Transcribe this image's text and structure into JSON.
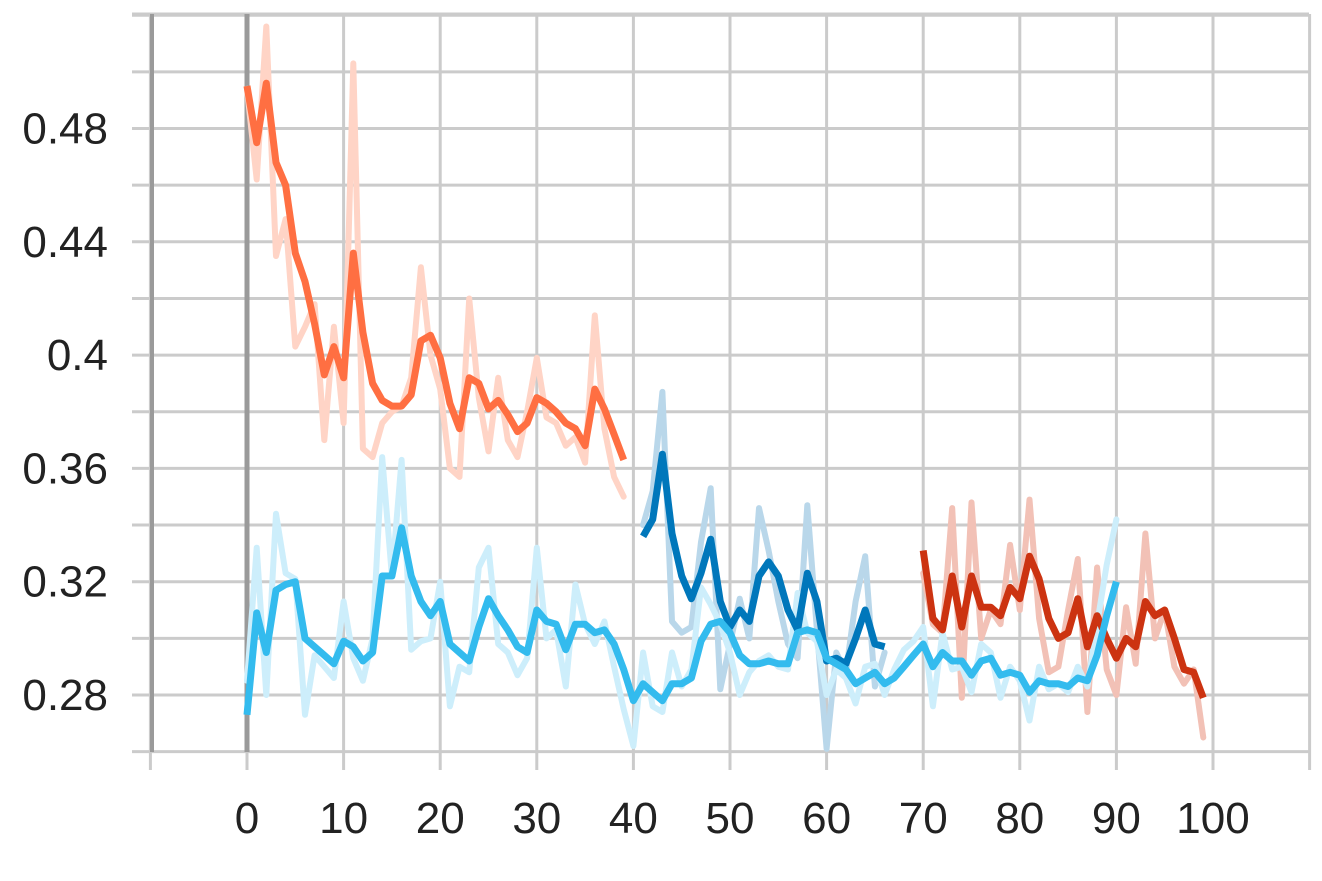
{
  "chart_data": {
    "type": "line",
    "title": "",
    "xlabel": "",
    "ylabel": "",
    "xlim": [
      -10,
      110
    ],
    "ylim": [
      0.26,
      0.53
    ],
    "x_ticks": [
      0,
      10,
      20,
      30,
      40,
      50,
      60,
      70,
      80,
      90,
      100
    ],
    "x_tick_labels": [
      "0",
      "10",
      "20",
      "30",
      "40",
      "50",
      "60",
      "70",
      "80",
      "90",
      "100"
    ],
    "y_ticks": [
      0.28,
      0.32,
      0.36,
      0.4,
      0.44,
      0.48
    ],
    "y_tick_labels": [
      "0.28",
      "0.32",
      "0.36",
      "0.4",
      "0.44",
      "0.48"
    ],
    "grid": true,
    "legend": "none",
    "series": [
      {
        "color": "#ff6f42",
        "raw_color": "#ffd4c6",
        "x_start": 0,
        "smoothed": [
          0.495,
          0.475,
          0.496,
          0.468,
          0.46,
          0.436,
          0.426,
          0.411,
          0.393,
          0.403,
          0.392,
          0.436,
          0.408,
          0.39,
          0.384,
          0.382,
          0.382,
          0.386,
          0.405,
          0.407,
          0.399,
          0.383,
          0.374,
          0.392,
          0.39,
          0.381,
          0.384,
          0.379,
          0.373,
          0.376,
          0.385,
          0.383,
          0.38,
          0.376,
          0.374,
          0.368,
          0.388,
          0.381,
          0.372,
          0.363
        ],
        "raw": [
          0.494,
          0.462,
          0.516,
          0.435,
          0.448,
          0.403,
          0.41,
          0.418,
          0.37,
          0.41,
          0.376,
          0.503,
          0.367,
          0.364,
          0.376,
          0.38,
          0.382,
          0.392,
          0.431,
          0.4,
          0.388,
          0.36,
          0.357,
          0.42,
          0.385,
          0.366,
          0.392,
          0.37,
          0.364,
          0.38,
          0.399,
          0.378,
          0.376,
          0.368,
          0.371,
          0.362,
          0.414,
          0.374,
          0.357,
          0.35
        ]
      },
      {
        "color": "#0077bb",
        "raw_color": "#b9d7ea",
        "x_start": 41,
        "smoothed": [
          0.336,
          0.342,
          0.365,
          0.337,
          0.322,
          0.314,
          0.323,
          0.335,
          0.313,
          0.304,
          0.31,
          0.306,
          0.322,
          0.327,
          0.322,
          0.31,
          0.303,
          0.323,
          0.313,
          0.292,
          0.293,
          0.291,
          0.3,
          0.31,
          0.298,
          0.297
        ],
        "raw": [
          0.34,
          0.352,
          0.387,
          0.306,
          0.302,
          0.304,
          0.334,
          0.353,
          0.282,
          0.298,
          0.314,
          0.3,
          0.346,
          0.331,
          0.313,
          0.298,
          0.293,
          0.347,
          0.303,
          0.261,
          0.295,
          0.288,
          0.313,
          0.329,
          0.283,
          0.295
        ]
      },
      {
        "color": "#cc3311",
        "raw_color": "#f2c1b6",
        "x_start": 70,
        "smoothed": [
          0.331,
          0.307,
          0.303,
          0.322,
          0.304,
          0.322,
          0.311,
          0.311,
          0.308,
          0.318,
          0.314,
          0.329,
          0.321,
          0.307,
          0.3,
          0.302,
          0.314,
          0.297,
          0.308,
          0.3,
          0.293,
          0.3,
          0.297,
          0.313,
          0.308,
          0.31,
          0.3,
          0.289,
          0.288,
          0.279
        ],
        "raw": [
          0.323,
          0.305,
          0.302,
          0.346,
          0.279,
          0.348,
          0.3,
          0.31,
          0.305,
          0.333,
          0.31,
          0.349,
          0.307,
          0.288,
          0.29,
          0.31,
          0.328,
          0.274,
          0.325,
          0.289,
          0.28,
          0.311,
          0.291,
          0.337,
          0.3,
          0.31,
          0.29,
          0.284,
          0.289,
          0.265
        ]
      },
      {
        "color": "#33bbee",
        "raw_color": "#cdeefb",
        "x_start": 0,
        "smoothed": [
          0.273,
          0.309,
          0.295,
          0.317,
          0.319,
          0.32,
          0.3,
          0.297,
          0.294,
          0.291,
          0.299,
          0.297,
          0.292,
          0.295,
          0.322,
          0.322,
          0.339,
          0.322,
          0.313,
          0.308,
          0.313,
          0.298,
          0.295,
          0.292,
          0.304,
          0.314,
          0.308,
          0.303,
          0.297,
          0.295,
          0.31,
          0.306,
          0.305,
          0.296,
          0.305,
          0.305,
          0.302,
          0.303,
          0.298,
          0.289,
          0.278,
          0.284,
          0.281,
          0.278,
          0.284,
          0.284,
          0.286,
          0.299,
          0.305,
          0.306,
          0.302,
          0.294,
          0.291,
          0.291,
          0.292,
          0.291,
          0.291,
          0.302,
          0.303,
          0.302,
          0.293,
          0.291,
          0.289,
          0.284,
          0.286,
          0.288,
          0.284,
          0.286,
          0.29,
          0.294,
          0.298,
          0.29,
          0.295,
          0.292,
          0.292,
          0.287,
          0.292,
          0.293,
          0.287,
          0.288,
          0.287,
          0.281,
          0.285,
          0.284,
          0.284,
          0.283,
          0.286,
          0.285,
          0.294,
          0.308,
          0.32
        ],
        "raw": [
          0.285,
          0.332,
          0.28,
          0.344,
          0.323,
          0.321,
          0.273,
          0.294,
          0.29,
          0.286,
          0.313,
          0.293,
          0.285,
          0.3,
          0.364,
          0.322,
          0.363,
          0.296,
          0.299,
          0.3,
          0.32,
          0.276,
          0.29,
          0.288,
          0.325,
          0.332,
          0.298,
          0.295,
          0.287,
          0.293,
          0.332,
          0.3,
          0.303,
          0.283,
          0.319,
          0.305,
          0.298,
          0.306,
          0.29,
          0.275,
          0.262,
          0.295,
          0.276,
          0.274,
          0.295,
          0.283,
          0.289,
          0.318,
          0.312,
          0.305,
          0.295,
          0.28,
          0.288,
          0.292,
          0.294,
          0.29,
          0.289,
          0.316,
          0.302,
          0.299,
          0.28,
          0.289,
          0.286,
          0.277,
          0.29,
          0.291,
          0.28,
          0.289,
          0.296,
          0.299,
          0.304,
          0.276,
          0.302,
          0.289,
          0.29,
          0.281,
          0.298,
          0.295,
          0.279,
          0.29,
          0.285,
          0.271,
          0.29,
          0.282,
          0.284,
          0.281,
          0.29,
          0.283,
          0.305,
          0.326,
          0.342
        ]
      }
    ]
  }
}
